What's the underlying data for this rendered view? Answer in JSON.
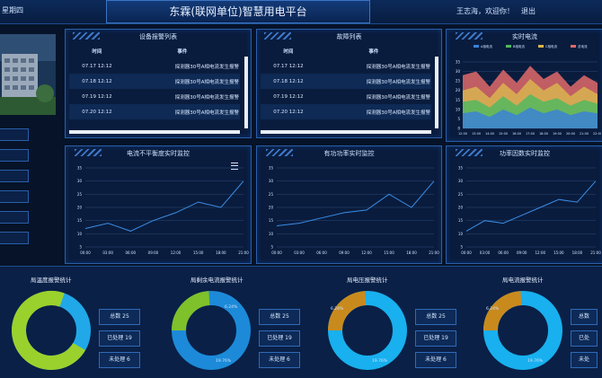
{
  "header": {
    "weekday": "星期四",
    "title": "东霖(联网单位)智慧用电平台",
    "welcome": "王志海，欢迎你！",
    "logout": "退出"
  },
  "alarm_panel": {
    "title": "设备报警列表",
    "columns": [
      "时间",
      "事件"
    ],
    "rows": [
      {
        "time": "07.17 12:12",
        "event": "探测器30号A相电流发生报警"
      },
      {
        "time": "07.18 12:12",
        "event": "探测器30号A相电流发生报警"
      },
      {
        "time": "07.19 12:12",
        "event": "探测器30号A相电流发生报警"
      },
      {
        "time": "07.20 12:12",
        "event": "探测器30号A相电流发生报警"
      }
    ]
  },
  "fault_panel": {
    "title": "故障列表",
    "columns": [
      "时间",
      "事件"
    ],
    "rows": [
      {
        "time": "07.17 12:12",
        "event": "探测器30号A相电流发生报警"
      },
      {
        "time": "07.18 12:12",
        "event": "探测器30号A相电流发生报警"
      },
      {
        "time": "07.19 12:12",
        "event": "探测器30号A相电流发生报警"
      },
      {
        "time": "07.20 12:12",
        "event": "探测器30号A相电流发生报警"
      }
    ]
  },
  "area_chart": {
    "title": "实时电流",
    "legend": [
      "A相电流",
      "B相电流",
      "C相电流",
      "总电流"
    ],
    "x": [
      "12:00",
      "13:00",
      "14:00",
      "15:00",
      "16:00",
      "17:00",
      "18:00",
      "19:00",
      "20:00",
      "21:00",
      "22:00"
    ],
    "y_ticks": [
      "0",
      "5",
      "10",
      "15",
      "20",
      "25",
      "30",
      "35"
    ],
    "colors": [
      "#3b82d6",
      "#52b85f",
      "#d9b450",
      "#e06a6a"
    ]
  },
  "line_charts": [
    {
      "title": "电流不平衡度实时监控",
      "y_ticks": [
        "5",
        "10",
        "15",
        "20",
        "25",
        "30",
        "35"
      ],
      "x": [
        "00:00",
        "03:00",
        "06:00",
        "09:00",
        "12:00",
        "15:00",
        "18:00",
        "21:00"
      ],
      "values": [
        12,
        14,
        11,
        15,
        18,
        22,
        20,
        30
      ]
    },
    {
      "title": "有功功率实时监控",
      "y_ticks": [
        "5",
        "10",
        "15",
        "20",
        "25",
        "30",
        "35"
      ],
      "x": [
        "00:00",
        "03:00",
        "06:00",
        "09:00",
        "12:00",
        "15:00",
        "18:00",
        "21:00"
      ],
      "values": [
        13,
        14,
        16,
        18,
        19,
        25,
        20,
        30
      ]
    },
    {
      "title": "功率因数实时监控",
      "y_ticks": [
        "5",
        "10",
        "15",
        "20",
        "25",
        "30",
        "35"
      ],
      "x": [
        "00:00",
        "03:00",
        "06:00",
        "09:00",
        "12:00",
        "15:00",
        "18:00",
        "21:00"
      ],
      "values": [
        11,
        15,
        14,
        17,
        20,
        23,
        22,
        30
      ]
    }
  ],
  "bottom_stats": [
    {
      "title": "局温度报警统计",
      "labels": [],
      "buttons": [
        "总数 25",
        "已处理 19",
        "未处理 6"
      ],
      "colors": [
        "#9bd12c",
        "#20a8e8"
      ]
    },
    {
      "title": "局剩余电流报警统计",
      "labels": [
        "6.24%",
        "19.76%"
      ],
      "buttons": [
        "总数 25",
        "已处理 19",
        "未处理 6"
      ],
      "colors": [
        "#7fc12a",
        "#1c8ad8"
      ]
    },
    {
      "title": "局电压报警统计",
      "labels": [
        "6.24%",
        "19.76%"
      ],
      "buttons": [
        "总数 25",
        "已处理 19",
        "未处理 6"
      ],
      "colors": [
        "#c98a1d",
        "#18b0ee"
      ]
    },
    {
      "title": "局电流报警统计",
      "labels": [
        "6.24%",
        "19.76%"
      ],
      "buttons": [
        "总数",
        "已处",
        "未处"
      ],
      "colors": [
        "#c98a1d",
        "#18b0ee"
      ]
    }
  ]
}
